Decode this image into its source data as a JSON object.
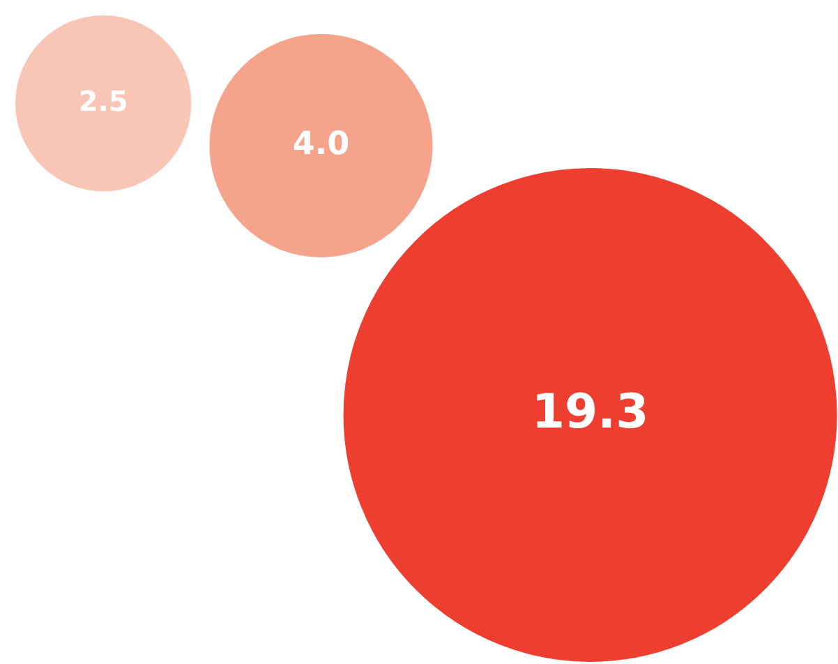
{
  "chart_data": {
    "type": "other",
    "categories": [
      null,
      null,
      null
    ],
    "values": [
      2.5,
      4.0,
      19.3
    ],
    "colors": [
      "#f9c6b6",
      "#f5a48b",
      "#ee3e30"
    ],
    "value_labels": [
      "2.5",
      "4.0",
      "19.3"
    ]
  }
}
